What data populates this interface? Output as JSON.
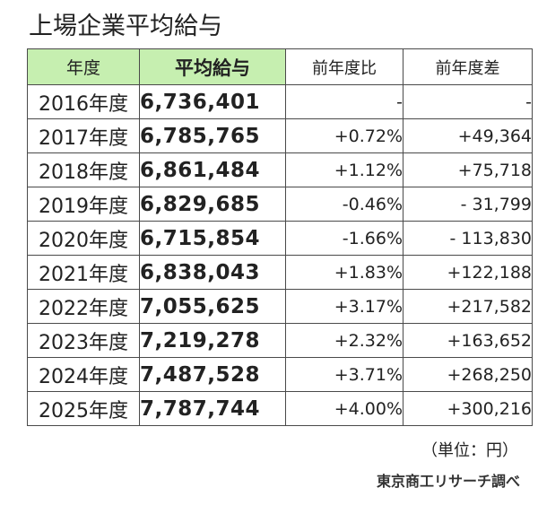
{
  "title": "上場企業平均給与",
  "table": {
    "headers": [
      "年度",
      "平均給与",
      "前年度比",
      "前年度差"
    ],
    "rows": [
      {
        "year": "2016年度",
        "salary": "6,736,401",
        "pct": "-",
        "diff": "-"
      },
      {
        "year": "2017年度",
        "salary": "6,785,765",
        "pct": "+0.72%",
        "diff": "+49,364"
      },
      {
        "year": "2018年度",
        "salary": "6,861,484",
        "pct": "+1.12%",
        "diff": "+75,718"
      },
      {
        "year": "2019年度",
        "salary": "6,829,685",
        "pct": "-0.46%",
        "diff": "- 31,799"
      },
      {
        "year": "2020年度",
        "salary": "6,715,854",
        "pct": "-1.66%",
        "diff": "- 113,830"
      },
      {
        "year": "2021年度",
        "salary": "6,838,043",
        "pct": "+1.83%",
        "diff": "+122,188"
      },
      {
        "year": "2022年度",
        "salary": "7,055,625",
        "pct": "+3.17%",
        "diff": "+217,582"
      },
      {
        "year": "2023年度",
        "salary": "7,219,278",
        "pct": "+2.32%",
        "diff": "+163,652"
      },
      {
        "year": "2024年度",
        "salary": "7,487,528",
        "pct": "+3.71%",
        "diff": "+268,250"
      },
      {
        "year": "2025年度",
        "salary": "7,787,744",
        "pct": "+4.00%",
        "diff": "+300,216"
      }
    ]
  },
  "unit_note": "（単位：円）",
  "source_note": "東京商工リサーチ調べ",
  "colors": {
    "header_green": "#c6efb0",
    "border": "#4a4a4a"
  }
}
